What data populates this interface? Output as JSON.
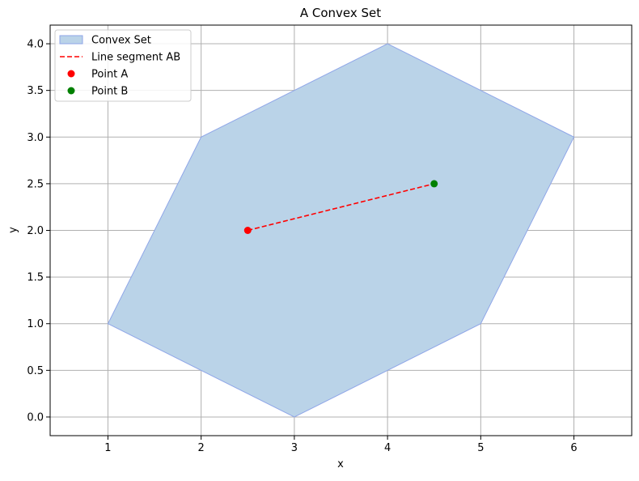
{
  "chart_data": {
    "type": "scatter",
    "title": "A Convex Set",
    "xlabel": "x",
    "ylabel": "y",
    "xlim": [
      0.38,
      6.62
    ],
    "ylim": [
      -0.2,
      4.2
    ],
    "xticks": [
      1,
      2,
      3,
      4,
      5,
      6
    ],
    "yticks": [
      0.0,
      0.5,
      1.0,
      1.5,
      2.0,
      2.5,
      3.0,
      3.5,
      4.0
    ],
    "xtick_labels": [
      "1",
      "2",
      "3",
      "4",
      "5",
      "6"
    ],
    "ytick_labels": [
      "0.0",
      "0.5",
      "1.0",
      "1.5",
      "2.0",
      "2.5",
      "3.0",
      "3.5",
      "4.0"
    ],
    "grid": true,
    "legend_position": "top-left",
    "series": [
      {
        "name": "Convex Set",
        "kind": "polygon",
        "x": [
          1,
          3,
          5,
          6,
          4,
          2
        ],
        "y": [
          1,
          0,
          1,
          3,
          4,
          3
        ],
        "fill_color": "#bad3e8",
        "edge_color": "#8fa6e8"
      },
      {
        "name": "Line segment AB",
        "kind": "line",
        "x": [
          2.5,
          4.5
        ],
        "y": [
          2.0,
          2.5
        ],
        "color": "#ff0000",
        "style": "dashed"
      },
      {
        "name": "Point A",
        "kind": "point",
        "x": [
          2.5
        ],
        "y": [
          2.0
        ],
        "color": "#ff0000"
      },
      {
        "name": "Point B",
        "kind": "point",
        "x": [
          4.5
        ],
        "y": [
          2.5
        ],
        "color": "#008000"
      }
    ]
  }
}
